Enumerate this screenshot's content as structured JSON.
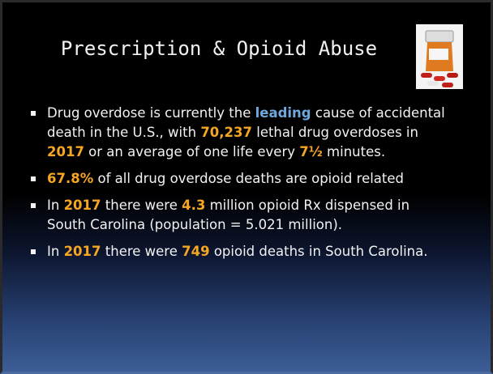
{
  "title": "Prescription & Opioid Abuse",
  "bullets": [
    [
      {
        "text": "Drug overdose is currently the "
      },
      {
        "text": "leading",
        "color": "#6fa8dc"
      },
      {
        "text": " cause of accidental death in the U.S., with "
      },
      {
        "text": "70,237",
        "color": "#f5a623"
      },
      {
        "text": " lethal drug overdoses in "
      },
      {
        "text": "2017",
        "color": "#f5a623"
      },
      {
        "text": " or an average of one life every "
      },
      {
        "text": "7½",
        "color": "#f5a623"
      },
      {
        "text": " minutes."
      }
    ],
    [
      {
        "text": "67.8%",
        "color": "#f5a623"
      },
      {
        "text": " of all drug overdose deaths are opioid related"
      }
    ],
    [
      {
        "text": "In "
      },
      {
        "text": "2017",
        "color": "#f5a623"
      },
      {
        "text": " there were "
      },
      {
        "text": "4.3",
        "color": "#f5a623"
      },
      {
        "text": " million opioid Rx dispensed in South Carolina (population = 5.021 million)."
      }
    ],
    [
      {
        "text": "In "
      },
      {
        "text": "2017",
        "color": "#f5a623"
      },
      {
        "text": " there were "
      },
      {
        "text": "749",
        "color": "#f5a623"
      },
      {
        "text": " opioid deaths in South Carolina."
      }
    ]
  ]
}
